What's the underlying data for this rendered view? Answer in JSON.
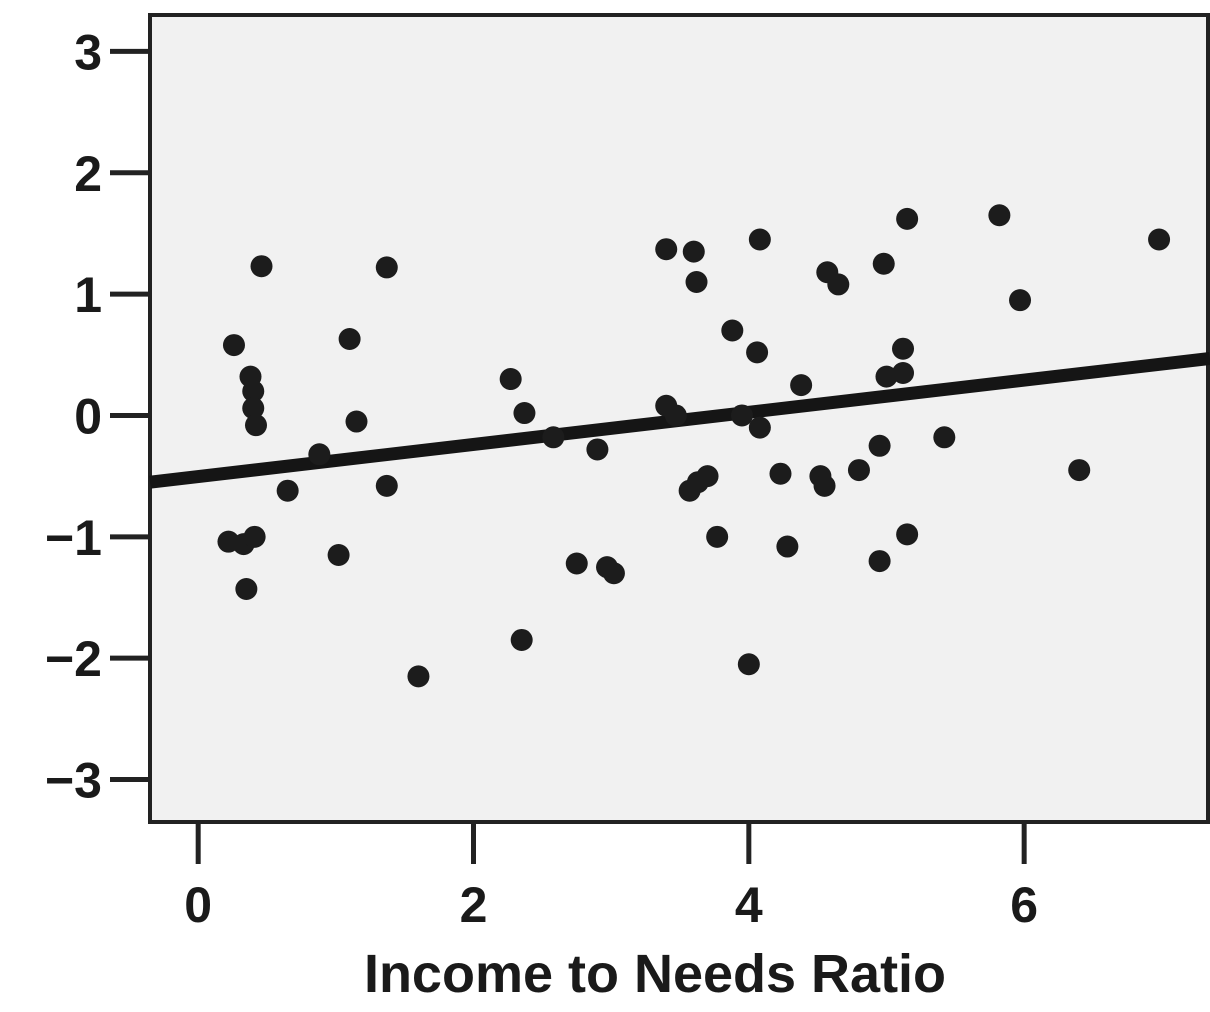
{
  "chart_data": {
    "type": "scatter",
    "title": "",
    "xlabel": "Income to Needs Ratio",
    "ylabel": "",
    "xlim": [
      -0.35,
      7.35
    ],
    "ylim": [
      -3.35,
      3.3
    ],
    "x_ticks": [
      0,
      2,
      4,
      6
    ],
    "x_tick_labels": [
      "0",
      "2",
      "4",
      "6"
    ],
    "y_ticks": [
      3,
      2,
      1,
      0,
      -1,
      -2,
      -3
    ],
    "y_tick_labels": [
      "3",
      "2",
      "1",
      "0",
      "−1",
      "−2",
      "−3"
    ],
    "grid": false,
    "fit_line": {
      "x": [
        -0.35,
        7.35
      ],
      "y": [
        -0.55,
        0.47
      ]
    },
    "points": [
      {
        "x": 0.26,
        "y": 0.58
      },
      {
        "x": 0.46,
        "y": 1.23
      },
      {
        "x": 0.38,
        "y": 0.32
      },
      {
        "x": 0.4,
        "y": 0.2
      },
      {
        "x": 0.4,
        "y": 0.06
      },
      {
        "x": 0.42,
        "y": -0.08
      },
      {
        "x": 0.22,
        "y": -1.04
      },
      {
        "x": 0.33,
        "y": -1.06
      },
      {
        "x": 0.41,
        "y": -1.0
      },
      {
        "x": 0.35,
        "y": -1.43
      },
      {
        "x": 0.65,
        "y": -0.62
      },
      {
        "x": 0.88,
        "y": -0.32
      },
      {
        "x": 1.02,
        "y": -1.15
      },
      {
        "x": 1.1,
        "y": 0.63
      },
      {
        "x": 1.15,
        "y": -0.05
      },
      {
        "x": 1.37,
        "y": 1.22
      },
      {
        "x": 1.37,
        "y": -0.58
      },
      {
        "x": 1.6,
        "y": -2.15
      },
      {
        "x": 2.27,
        "y": 0.3
      },
      {
        "x": 2.37,
        "y": 0.02
      },
      {
        "x": 2.35,
        "y": -1.85
      },
      {
        "x": 2.58,
        "y": -0.18
      },
      {
        "x": 2.75,
        "y": -1.22
      },
      {
        "x": 2.9,
        "y": -0.28
      },
      {
        "x": 2.97,
        "y": -1.25
      },
      {
        "x": 3.02,
        "y": -1.3
      },
      {
        "x": 3.4,
        "y": 0.08
      },
      {
        "x": 3.47,
        "y": 0.0
      },
      {
        "x": 3.4,
        "y": 1.37
      },
      {
        "x": 3.6,
        "y": 1.35
      },
      {
        "x": 3.62,
        "y": 1.1
      },
      {
        "x": 3.57,
        "y": -0.62
      },
      {
        "x": 3.63,
        "y": -0.55
      },
      {
        "x": 3.7,
        "y": -0.5
      },
      {
        "x": 3.77,
        "y": -1.0
      },
      {
        "x": 3.88,
        "y": 0.7
      },
      {
        "x": 4.06,
        "y": 0.52
      },
      {
        "x": 4.08,
        "y": 1.45
      },
      {
        "x": 3.95,
        "y": 0.0
      },
      {
        "x": 4.08,
        "y": -0.1
      },
      {
        "x": 4.0,
        "y": -2.05
      },
      {
        "x": 4.23,
        "y": -0.48
      },
      {
        "x": 4.28,
        "y": -1.08
      },
      {
        "x": 4.38,
        "y": 0.25
      },
      {
        "x": 4.52,
        "y": -0.5
      },
      {
        "x": 4.55,
        "y": -0.58
      },
      {
        "x": 4.57,
        "y": 1.18
      },
      {
        "x": 4.65,
        "y": 1.08
      },
      {
        "x": 4.8,
        "y": -0.45
      },
      {
        "x": 4.98,
        "y": 1.25
      },
      {
        "x": 4.95,
        "y": -0.25
      },
      {
        "x": 4.95,
        "y": -1.2
      },
      {
        "x": 5.0,
        "y": 0.32
      },
      {
        "x": 5.12,
        "y": 0.35
      },
      {
        "x": 5.12,
        "y": 0.55
      },
      {
        "x": 5.15,
        "y": -0.98
      },
      {
        "x": 5.15,
        "y": 1.62
      },
      {
        "x": 5.42,
        "y": -0.18
      },
      {
        "x": 5.82,
        "y": 1.65
      },
      {
        "x": 5.97,
        "y": 0.95
      },
      {
        "x": 6.4,
        "y": -0.45
      },
      {
        "x": 6.98,
        "y": 1.45
      }
    ]
  }
}
